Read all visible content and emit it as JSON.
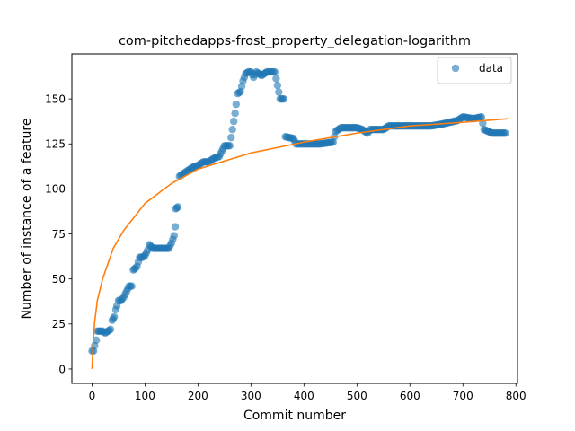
{
  "chart_data": {
    "type": "scatter",
    "title": "com-pitchedapps-frost_property_delegation-logarithm",
    "xlabel": "Commit number",
    "ylabel": "Number of instance of a feature",
    "xlim": [
      -38,
      803
    ],
    "ylim": [
      -8,
      175
    ],
    "xticks": [
      0,
      100,
      200,
      300,
      400,
      500,
      600,
      700,
      800
    ],
    "yticks": [
      0,
      25,
      50,
      75,
      100,
      125,
      150
    ],
    "grid": false,
    "legend": {
      "placement": "upper right",
      "entries": [
        "data"
      ]
    },
    "colors": {
      "data": "#1f77b4",
      "fit": "#ff7f0e"
    },
    "series": [
      {
        "name": "data",
        "kind": "scatter",
        "anchors": [
          [
            0,
            10
          ],
          [
            3,
            10
          ],
          [
            5,
            13
          ],
          [
            8,
            16
          ],
          [
            10,
            21
          ],
          [
            15,
            21
          ],
          [
            20,
            21
          ],
          [
            25,
            20
          ],
          [
            30,
            21
          ],
          [
            35,
            22
          ],
          [
            38,
            27
          ],
          [
            42,
            29
          ],
          [
            45,
            33
          ],
          [
            47,
            35
          ],
          [
            50,
            38
          ],
          [
            55,
            38
          ],
          [
            60,
            40
          ],
          [
            65,
            43
          ],
          [
            70,
            46
          ],
          [
            75,
            46
          ],
          [
            78,
            55
          ],
          [
            82,
            56
          ],
          [
            85,
            57
          ],
          [
            90,
            62
          ],
          [
            95,
            62
          ],
          [
            100,
            63
          ],
          [
            105,
            66
          ],
          [
            108,
            69
          ],
          [
            115,
            67
          ],
          [
            130,
            67
          ],
          [
            145,
            67
          ],
          [
            150,
            70
          ],
          [
            155,
            74
          ],
          [
            157,
            79
          ],
          [
            158,
            89
          ],
          [
            162,
            90
          ],
          [
            165,
            107
          ],
          [
            170,
            108
          ],
          [
            180,
            110
          ],
          [
            190,
            112
          ],
          [
            200,
            113
          ],
          [
            210,
            115
          ],
          [
            220,
            115
          ],
          [
            230,
            117
          ],
          [
            240,
            118
          ],
          [
            250,
            124
          ],
          [
            260,
            124
          ],
          [
            265,
            133
          ],
          [
            270,
            142
          ],
          [
            272,
            147
          ],
          [
            275,
            153
          ],
          [
            280,
            154
          ],
          [
            285,
            160
          ],
          [
            290,
            164
          ],
          [
            295,
            165
          ],
          [
            300,
            165
          ],
          [
            305,
            162
          ],
          [
            310,
            165
          ],
          [
            320,
            163
          ],
          [
            330,
            165
          ],
          [
            345,
            165
          ],
          [
            355,
            150
          ],
          [
            362,
            150
          ],
          [
            365,
            129
          ],
          [
            380,
            128
          ],
          [
            385,
            125
          ],
          [
            400,
            125
          ],
          [
            430,
            125
          ],
          [
            455,
            126
          ],
          [
            460,
            132
          ],
          [
            470,
            134
          ],
          [
            500,
            134
          ],
          [
            510,
            133
          ],
          [
            520,
            131
          ],
          [
            525,
            133
          ],
          [
            550,
            133
          ],
          [
            560,
            135
          ],
          [
            600,
            135
          ],
          [
            640,
            135
          ],
          [
            660,
            136
          ],
          [
            675,
            137
          ],
          [
            690,
            138
          ],
          [
            700,
            140
          ],
          [
            720,
            139
          ],
          [
            735,
            140
          ],
          [
            740,
            133
          ],
          [
            755,
            131
          ],
          [
            780,
            131
          ]
        ]
      },
      {
        "name": "fit",
        "kind": "line",
        "anchors": [
          [
            0,
            0
          ],
          [
            2,
            14
          ],
          [
            5,
            26
          ],
          [
            10,
            38
          ],
          [
            20,
            50
          ],
          [
            40,
            67
          ],
          [
            60,
            77
          ],
          [
            100,
            92
          ],
          [
            150,
            103
          ],
          [
            200,
            111
          ],
          [
            300,
            120
          ],
          [
            400,
            126
          ],
          [
            500,
            131
          ],
          [
            600,
            135
          ],
          [
            700,
            137
          ],
          [
            785,
            139
          ]
        ]
      }
    ]
  }
}
